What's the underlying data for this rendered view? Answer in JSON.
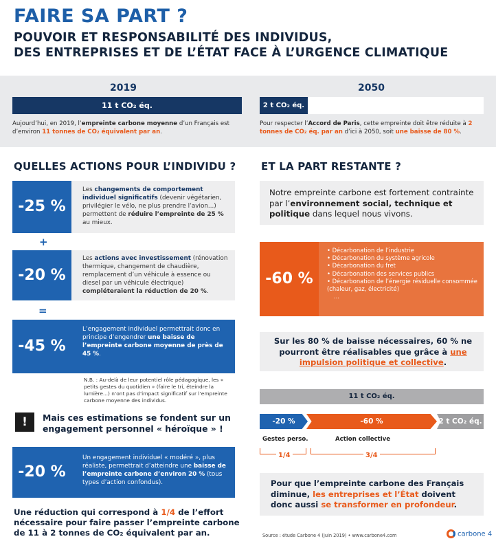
{
  "header": {
    "title": "FAIRE SA PART ?",
    "subtitle_line1": "POUVOIR ET RESPONSABILITÉ DES INDIVIDUS,",
    "subtitle_line2": "DES ENTREPRISES ET DE L’ÉTAT FACE À L’URGENCE CLIMATIQUE"
  },
  "timeline": {
    "y2019": {
      "year": "2019",
      "bar_label": "11 t CO₂ éq.",
      "note_a": "Aujourd’hui, en 2019, l’",
      "note_b": "empreinte carbone moyenne",
      "note_c": " d’un Français est d’environ ",
      "note_d": "11 tonnes de CO₂ équivalent par an",
      "note_e": "."
    },
    "y2050": {
      "year": "2050",
      "bar_label": "2 t CO₂ éq.",
      "note_a": "Pour respecter l’",
      "note_b": "Accord de Paris",
      "note_c": ", cette empreinte doit être réduite à ",
      "note_d": "2 tonnes de CO₂ éq. par an",
      "note_e": " d’ici à 2050, soit ",
      "note_f": "une baisse de 80 %",
      "note_g": "."
    }
  },
  "individu": {
    "heading": "QUELLES ACTIONS POUR L’INDIVIDU ?",
    "block1": {
      "pct": "-25 %",
      "a": "Les ",
      "b": "changements de comportement individuel significatifs",
      "c": " (devenir végétarien, privilégier le vélo, ne plus prendre l’avion...) permettent de ",
      "d": "réduire l’empreinte de 25 %",
      "e": " au mieux."
    },
    "plus": "+",
    "block2": {
      "pct": "-20 %",
      "a": "Les ",
      "b": "actions avec investissement",
      "c": " (rénovation thermique, changement de chaudière, remplacement d’un véhicule à essence ou diesel par un véhicule électrique) ",
      "d": "compléteraient la réduction de 20 %",
      "e": "."
    },
    "equals": "=",
    "block3": {
      "pct": "-45 %",
      "a": "L’engagement individuel permettrait donc en principe d’engendrer ",
      "b": "une baisse de l’empreinte carbone moyenne de près de 45 %",
      "c": "."
    },
    "nb": "N.B. : Au-delà de leur potentiel rôle pédagogique, les « petits gestes du quotidien » (faire le tri, éteindre la lumière...) n’ont pas d’impact significatif sur l’empreinte carbone moyenne des individus.",
    "warning_icon": "!",
    "warning": "Mais ces estimations se fondent sur un engagement personnel « héroïque » !",
    "block4": {
      "pct": "-20 %",
      "a": "Un engagement individuel « modéré », plus réaliste, permettrait d’atteindre une ",
      "b": "baisse de l’empreinte carbone d’environ 20 %",
      "c": " (tous types d’action confondus)."
    },
    "conclusion_a": "Une réduction qui correspond à ",
    "conclusion_b": "1/4",
    "conclusion_c": " de l’effort nécessaire pour faire passer l’empreinte carbone de 11 à 2 tonnes de CO₂ équivalent par an."
  },
  "restante": {
    "heading": "ET LA PART RESTANTE ?",
    "intro_a": "Notre empreinte carbone est fortement contrainte par l’",
    "intro_b": "environnement social, technique et politique",
    "intro_c": " dans lequel nous vivons.",
    "pct": "-60 %",
    "items": [
      "Décarbonation de l’industrie",
      "Décarbonation du système agricole",
      "Décarbonation du fret",
      "Décarbonation des services publics",
      "Décarbonation de l’énergie résiduelle consommée (chaleur, gaz, électricité)"
    ],
    "ellipsis": "...",
    "mid_a": "Sur les 80 % de baisse nécessaires, 60 % ne pourront être réalisables que grâce à ",
    "mid_b": "une impulsion politique et collective",
    "mid_c": ".",
    "total_bar": "11 t CO₂ éq.",
    "seg_a": "-20 %",
    "seg_b": "-60 %",
    "seg_c": "2 t CO₂ éq.",
    "label_a": "Gestes perso.",
    "label_b": "Action collective",
    "frac_a": "1/4",
    "frac_b": "3/4",
    "final_a": "Pour que l’empreinte carbone des Français diminue, ",
    "final_b": "les entreprises et l’État",
    "final_c": " doivent donc aussi ",
    "final_d": "se transformer en profondeur",
    "final_e": "."
  },
  "footer": {
    "source": "Source : étude Carbone 4 (juin 2019) • www.carbone4.com",
    "logo": "carbone 4"
  }
}
